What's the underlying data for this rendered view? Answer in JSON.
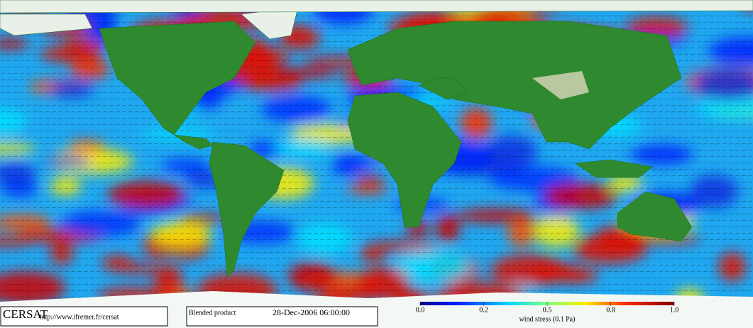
{
  "footer": {
    "logo": "CERSAT",
    "url": "http://www.ifremer.fr/cersat",
    "product": "Blended product",
    "date": "28-Dec-2006 06:00:00"
  },
  "colorbar": {
    "ticks": [
      {
        "value": 0,
        "label": "0.0"
      },
      {
        "value": 0.2,
        "label": "0.2"
      },
      {
        "value": 0.5,
        "label": "0.5"
      },
      {
        "value": 0.8,
        "label": "0.8"
      },
      {
        "value": 1,
        "label": "1.0"
      }
    ],
    "label": "wind stress (0.1 Pa)"
  }
}
